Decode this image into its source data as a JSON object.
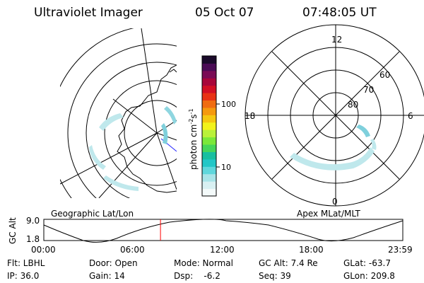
{
  "header": {
    "instrument": "Ultraviolet Imager",
    "date": "05 Oct 07",
    "time": "07:48:05 UT"
  },
  "colorbar": {
    "unit_label": "photon cm",
    "unit_exp1": "-2",
    "unit_s": "s",
    "unit_exp2": "-1",
    "tick_100": "100",
    "tick_10": "10",
    "colors": [
      "#f4fafa",
      "#d8f0f2",
      "#a8e4e8",
      "#5fd7dc",
      "#22c7c7",
      "#18bfa0",
      "#45d65a",
      "#7ae83a",
      "#b9f13a",
      "#f2f31b",
      "#f5c710",
      "#f5990d",
      "#f06c10",
      "#e83214",
      "#d20f24",
      "#a8063a",
      "#7a0b55",
      "#4a0b55",
      "#1a0a2a"
    ]
  },
  "mlt_plot": {
    "lat_labels": [
      "80",
      "70",
      "60"
    ],
    "mlt_labels": {
      "top": "12",
      "bottom": "0",
      "left": "18",
      "right": "6"
    }
  },
  "timeline": {
    "left_caption": "Geographic Lat/Lon",
    "right_caption": "Apex MLat/MLT",
    "y_axis_label": "GC Alt",
    "y_high": "9.0",
    "y_low": "1.8",
    "x_ticks": [
      "00:00",
      "06:00",
      "12:00",
      "18:00",
      "23:59"
    ],
    "marker_hour": 7.8,
    "marker_color": "#ff0000"
  },
  "footer": {
    "row1": {
      "filter": "Flt: LBHL",
      "door": "Door: Open",
      "mode": "Mode: Normal",
      "gc_alt": "GC Alt: 7.4 Re",
      "glat": "GLat: -63.7"
    },
    "row2": {
      "ip": "IP: 36.0",
      "gain": "Gain: 14",
      "dsp": "Dsp:    -6.2",
      "seq": "Seq: 39",
      "glon": "GLon: 209.8"
    }
  }
}
